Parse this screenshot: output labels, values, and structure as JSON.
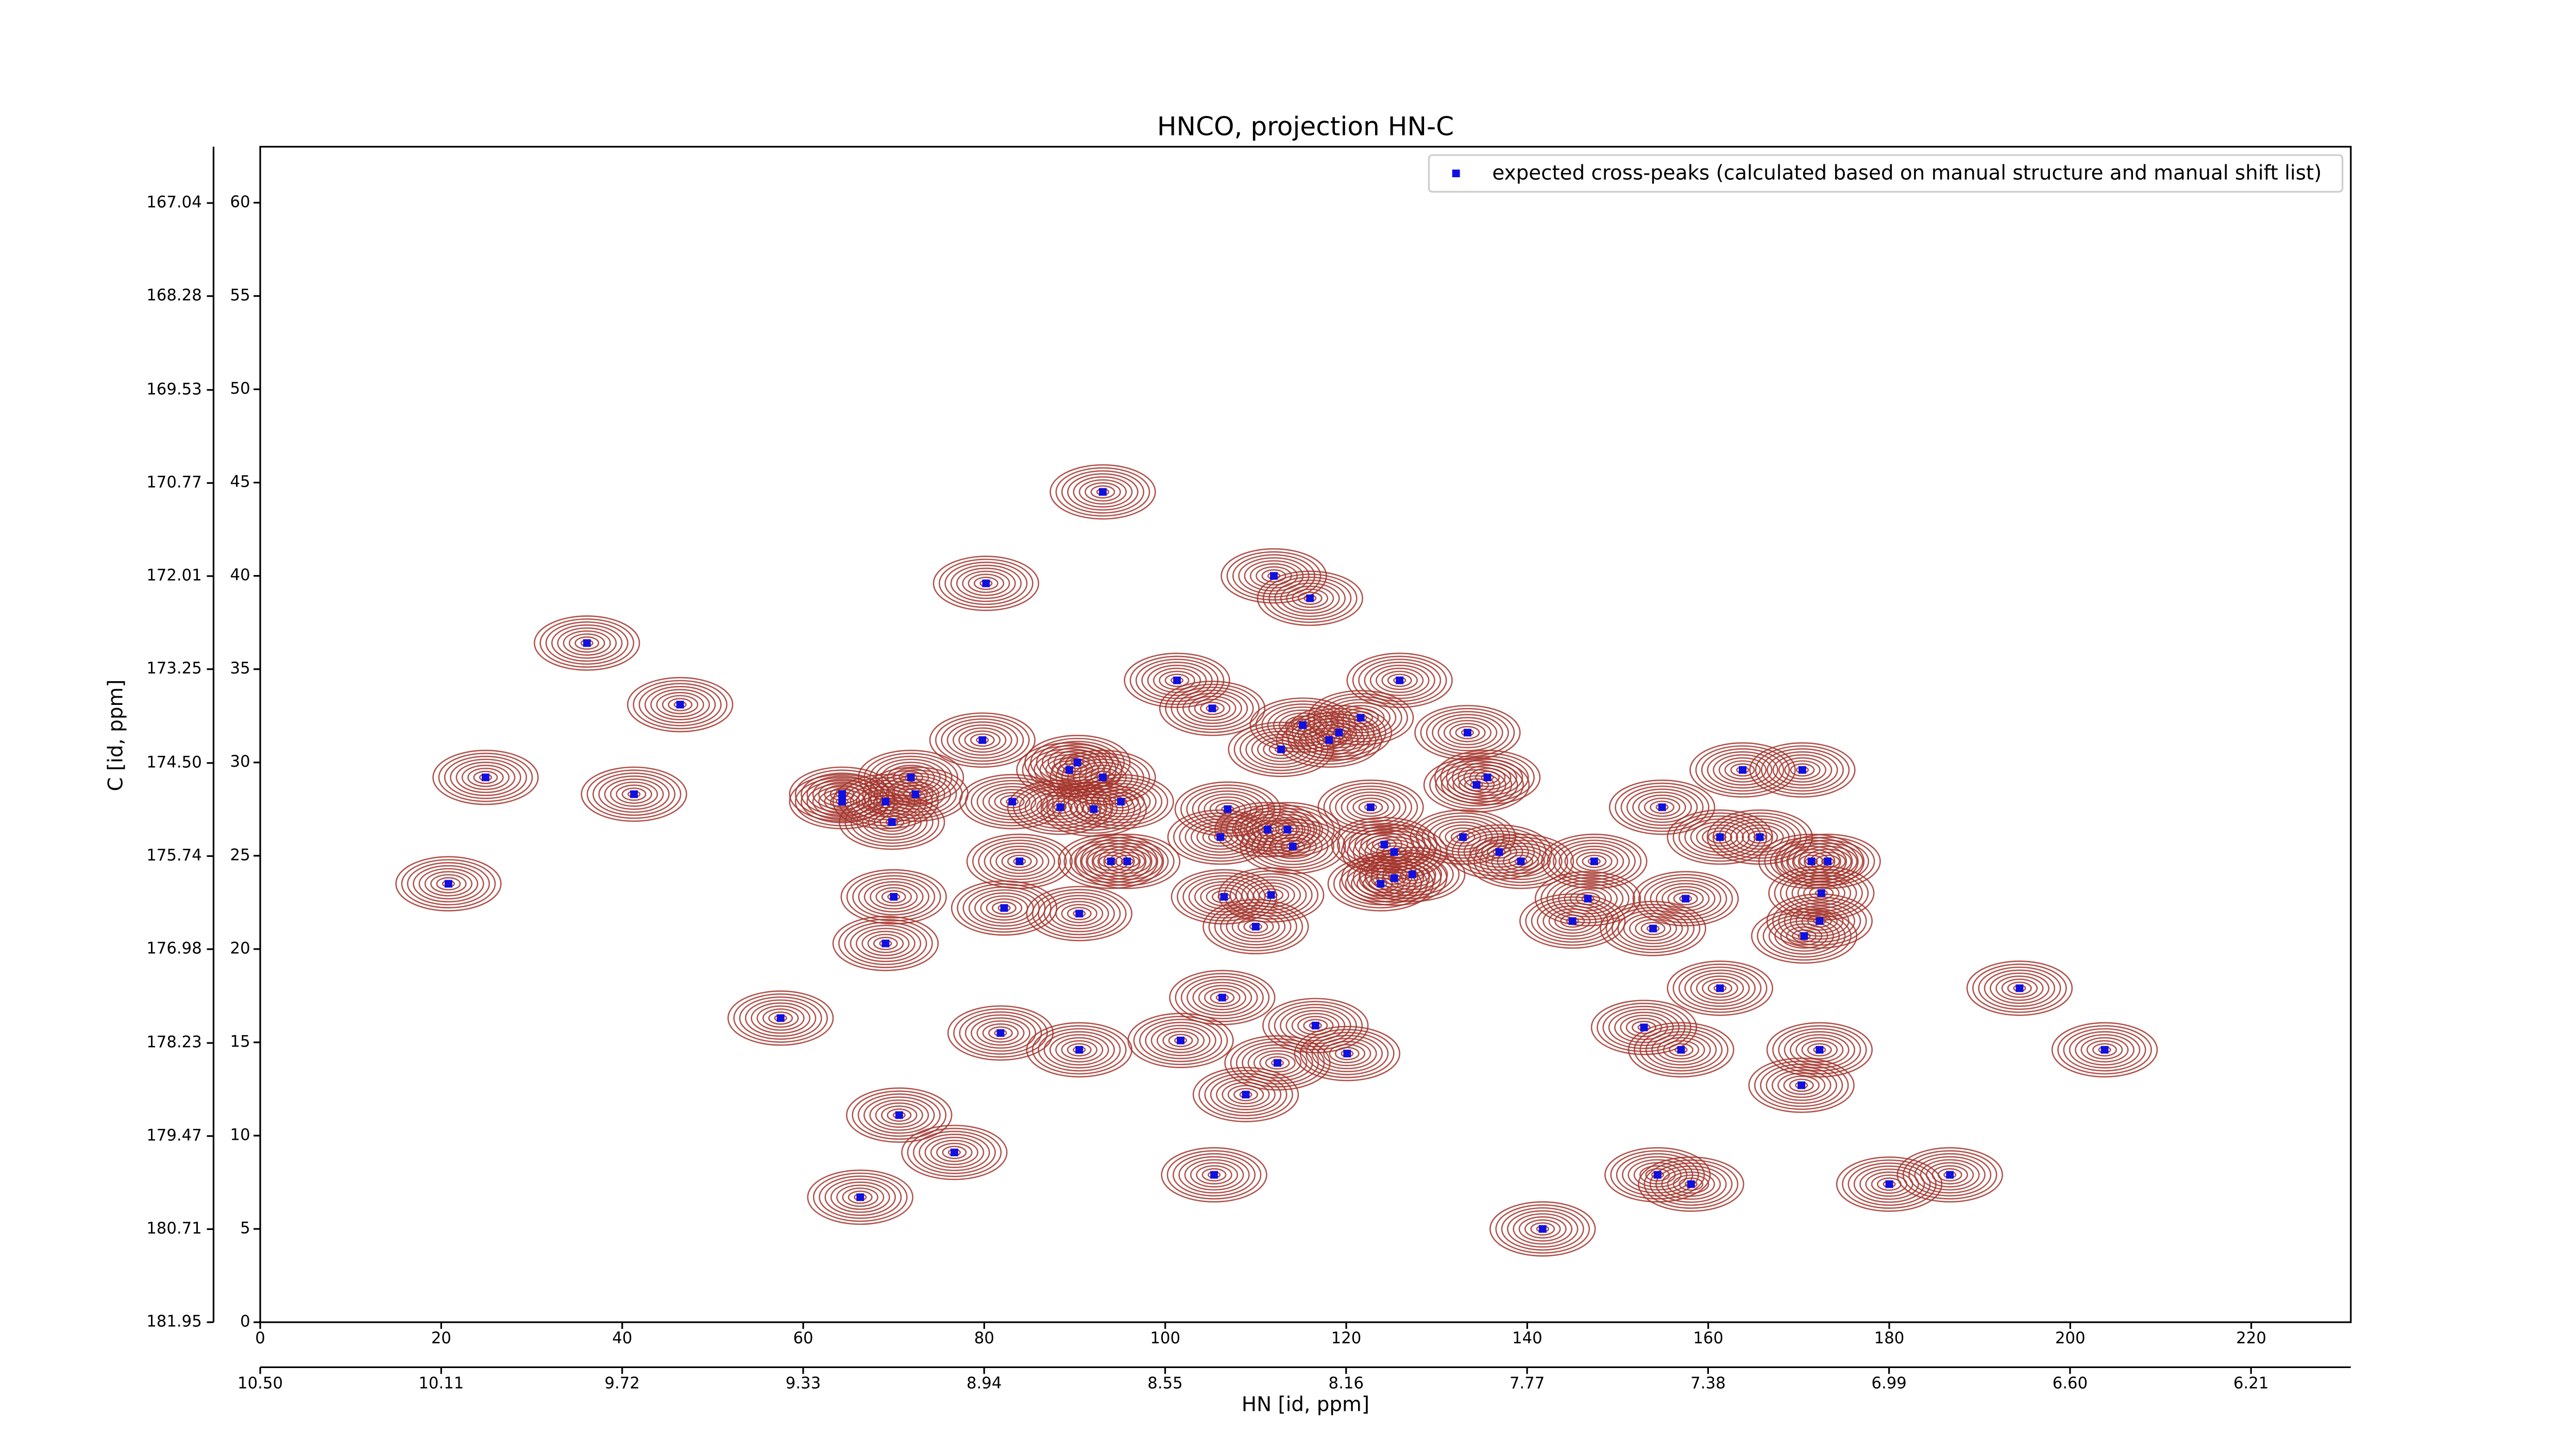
{
  "chart_data": {
    "type": "scatter",
    "title": "HNCO, projection HN-C",
    "xlabel": "HN [id, ppm]",
    "ylabel": "C [id, ppm]",
    "xlim": [
      0,
      231
    ],
    "ylim": [
      0,
      63
    ],
    "xticks": [
      0,
      20,
      40,
      60,
      80,
      100,
      120,
      140,
      160,
      180,
      200,
      220
    ],
    "yticks": [
      0,
      5,
      10,
      15,
      20,
      25,
      30,
      35,
      40,
      45,
      50,
      55,
      60
    ],
    "x2lim": [
      10.5,
      5.995
    ],
    "x2ticks": [
      {
        "value": 10.5,
        "label": "10.50"
      },
      10.11,
      9.72,
      9.33,
      8.94,
      8.55,
      8.16,
      7.77,
      7.38,
      6.99,
      {
        "value": 6.6,
        "label": "6.60"
      },
      6.21
    ],
    "y2lim": [
      181.95,
      166.29
    ],
    "y2ticks": [
      181.95,
      180.71,
      179.47,
      178.23,
      176.98,
      175.74,
      {
        "value": 174.5,
        "label": "174.50"
      },
      173.25,
      172.01,
      170.77,
      169.53,
      168.28,
      167.04
    ],
    "legend": "upper right",
    "contour_color": "#a3342c",
    "series": [
      {
        "name": "expected cross-peaks (calculated based on manual structure and manual shift list)",
        "color": "#1010e0",
        "x": [
          36.1,
          46.4,
          24.9,
          41.3,
          20.8,
          57.5,
          66.3,
          70.6,
          76.7,
          69.1,
          70.0,
          64.3,
          64.3,
          69.1,
          69.8,
          71.9,
          72.4,
          80.2,
          79.8,
          83.1,
          83.9,
          82.2,
          81.8,
          93.1,
          90.3,
          89.4,
          93.1,
          88.4,
          92.1,
          95.1,
          94.0,
          95.8,
          90.5,
          90.5,
          101.3,
          105.2,
          106.9,
          106.1,
          106.5,
          110.0,
          106.3,
          101.7,
          108.9,
          105.4,
          112.0,
          116.0,
          115.2,
          112.8,
          118.1,
          119.2,
          121.6,
          111.3,
          113.5,
          114.1,
          111.7,
          112.4,
          116.6,
          120.1,
          122.7,
          124.2,
          125.3,
          123.8,
          125.3,
          127.3,
          125.9,
          133.4,
          134.4,
          135.6,
          132.9,
          136.9,
          139.3,
          141.7,
          147.4,
          146.7,
          145.0,
          154.9,
          153.9,
          157.5,
          152.9,
          157.0,
          154.4,
          158.1,
          161.3,
          165.7,
          163.8,
          170.4,
          161.3,
          171.4,
          173.2,
          172.5,
          172.3,
          170.6,
          172.3,
          170.3,
          180.0,
          186.7,
          194.4,
          203.8
        ],
        "values": [
          36.4,
          33.1,
          29.2,
          28.3,
          23.5,
          16.3,
          6.7,
          11.1,
          9.1,
          20.3,
          22.8,
          28.3,
          27.9,
          27.9,
          26.8,
          29.2,
          28.3,
          39.6,
          31.2,
          27.9,
          24.7,
          22.2,
          15.5,
          44.5,
          30.0,
          29.6,
          29.2,
          27.6,
          27.5,
          27.9,
          24.7,
          24.7,
          21.9,
          14.6,
          34.4,
          32.9,
          27.5,
          26.0,
          22.8,
          21.2,
          17.4,
          15.1,
          12.2,
          7.9,
          40.0,
          38.8,
          32.0,
          30.7,
          31.2,
          31.6,
          32.4,
          26.4,
          26.4,
          25.5,
          22.9,
          13.9,
          15.9,
          14.4,
          27.6,
          25.6,
          25.2,
          23.5,
          23.8,
          24.0,
          34.4,
          31.6,
          28.8,
          29.2,
          26.0,
          25.2,
          24.7,
          5.0,
          24.7,
          22.7,
          21.5,
          27.6,
          21.1,
          22.7,
          15.8,
          14.6,
          7.9,
          7.4,
          26.0,
          26.0,
          29.6,
          29.6,
          17.9,
          24.7,
          24.7,
          23.0,
          21.5,
          20.7,
          14.6,
          12.7,
          7.4,
          7.9,
          17.9,
          14.6
        ]
      }
    ]
  }
}
